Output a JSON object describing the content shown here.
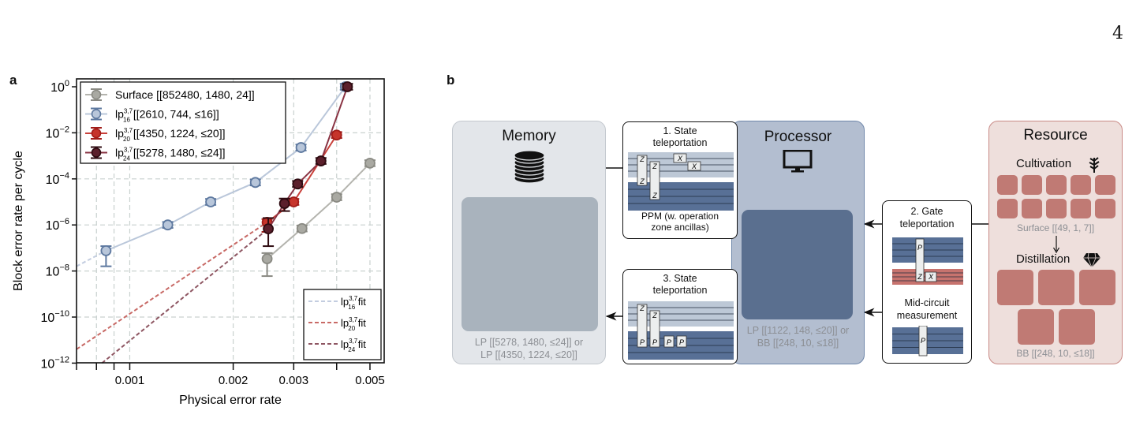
{
  "page_number": "4",
  "panel_a": {
    "label": "a",
    "chart_data": {
      "type": "line",
      "xlabel": "Physical error rate",
      "ylabel": "Block error rate per cycle",
      "x_scale": "log",
      "y_scale": "log",
      "xlim": [
        0.0007,
        0.0055
      ],
      "ylim": [
        1e-12,
        1
      ],
      "x_ticks": [
        {
          "value": 0.001,
          "label": "0.001"
        },
        {
          "value": 0.002,
          "label": "0.002"
        },
        {
          "value": 0.003,
          "label": "0.003"
        },
        {
          "value": 0.005,
          "label": "0.005"
        }
      ],
      "x_minor_ticks": [
        0.0007,
        0.0008,
        0.0009,
        0.004
      ],
      "y_ticks": [
        {
          "value": 1,
          "base": "10",
          "exp": "0"
        },
        {
          "value": 0.01,
          "base": "10",
          "exp": "−2"
        },
        {
          "value": 0.0001,
          "base": "10",
          "exp": "−4"
        },
        {
          "value": 1e-06,
          "base": "10",
          "exp": "−6"
        },
        {
          "value": 1e-08,
          "base": "10",
          "exp": "−8"
        },
        {
          "value": 1e-10,
          "base": "10",
          "exp": "−10"
        },
        {
          "value": 1e-12,
          "base": "10",
          "exp": "−12"
        }
      ],
      "grid": true,
      "legend_placement": "top-left",
      "fit_legend_placement": "bottom-right",
      "series": [
        {
          "name": "Surface",
          "sup": "",
          "sub": "",
          "params": "[[852480, 1480, 24]]",
          "line": "#b4b4ae",
          "fill": "#a9a9a2",
          "stroke": "#8a8a83",
          "x": [
            0.00251,
            0.00317,
            0.004,
            0.005
          ],
          "y": [
            3.4e-08,
            7e-07,
            1.6e-05,
            0.00048
          ],
          "err": [
            [
              6e-09,
              6e-08
            ],
            null,
            null,
            null
          ]
        },
        {
          "name": "lp",
          "sup": "3,7",
          "sub": "16",
          "params": "[[2610, 744, ≤16]]",
          "line": "#bac7da",
          "fill": "#b8c6da",
          "stroke": "#5d789f",
          "x": [
            0.000853,
            0.00129,
            0.00172,
            0.00232,
            0.00315,
            0.00424
          ],
          "y": [
            7.6e-08,
            1e-06,
            1e-05,
            7e-05,
            0.0023,
            1
          ],
          "err": [
            [
              1.6e-08,
              1.2e-07
            ],
            null,
            null,
            null,
            null,
            null
          ]
        },
        {
          "name": "lp",
          "sup": "3,7",
          "sub": "20",
          "params": "[[4350, 1224, ≤20]]",
          "line": "#c9403a",
          "fill": "#c6342b",
          "stroke": "#a11c18",
          "x": [
            0.00251,
            0.003,
            0.004
          ],
          "y": [
            1.3e-06,
            1e-05,
            0.008
          ],
          "err": [
            [
              5e-07,
              1.8e-06
            ],
            null,
            null
          ]
        },
        {
          "name": "lp",
          "sup": "3,7",
          "sub": "24",
          "params": "[[5278, 1480, ≤24]]",
          "line": "#8a3444",
          "fill": "#5b1f2b",
          "stroke": "#2e0a10",
          "x": [
            0.00253,
            0.00282,
            0.00308,
            0.0036,
            0.0043
          ],
          "y": [
            6.8e-07,
            8.5e-06,
            6e-05,
            0.0006,
            1
          ],
          "err": [
            [
              1.2e-07,
              2e-06
            ],
            [
              4e-06,
              1.4e-05
            ],
            null,
            null,
            null
          ]
        }
      ],
      "fits": [
        {
          "name": "lp",
          "sup": "3,7",
          "sub": "16",
          "suffix": "fit",
          "color": "#c3cde0",
          "x": [
            0.0007,
            0.000853
          ],
          "y": [
            1.6e-08,
            7.6e-08
          ]
        },
        {
          "name": "lp",
          "sup": "3,7",
          "sub": "20",
          "suffix": "fit",
          "color": "#c86a66",
          "x": [
            0.0007,
            0.00251
          ],
          "y": [
            4e-12,
            1.3e-06
          ]
        },
        {
          "name": "lp",
          "sup": "3,7",
          "sub": "24",
          "suffix": "fit",
          "color": "#8e5662",
          "x": [
            0.00083,
            0.00253
          ],
          "y": [
            1e-12,
            6.8e-07
          ]
        }
      ]
    }
  },
  "panel_b": {
    "label": "b",
    "memory": {
      "title": "Memory",
      "icon": "database-icon",
      "code_line1": "LP [[5278, 1480, ≤24]] or",
      "code_line2": "LP [[4350, 1224, ≤20]]"
    },
    "processor": {
      "title": "Processor",
      "icon": "monitor-icon",
      "code_line1": "LP [[1122, 148, ≤20]] or",
      "code_line2": "BB [[248, 10, ≤18]]"
    },
    "resource": {
      "title": "Resource",
      "cultivation": "Cultivation",
      "cultivation_icon": "sprout-icon",
      "surface_code": "Surface [[49, 1, 7]]",
      "distillation": "Distillation",
      "distillation_icon": "diamond-icon",
      "bb_code": "BB [[248, 10, ≤18]]"
    },
    "step1": {
      "title_line1": "1. State",
      "title_line2": "teleportation",
      "note_line1": "PPM (w. operation",
      "note_line2": "zone ancillas)",
      "gates": [
        "Z",
        "Z",
        "Z",
        "Z",
        "X",
        "X"
      ]
    },
    "step2": {
      "title_line1": "2. Gate",
      "title_line2": "teleportation",
      "gates": [
        "P",
        "Z",
        "X"
      ],
      "mid_line1": "Mid-circuit",
      "mid_line2": "measurement",
      "mid_gates": [
        "P"
      ]
    },
    "step3": {
      "title_line1": "3. State",
      "title_line2": "teleportation",
      "gates": [
        "Z",
        "P",
        "Z",
        "P",
        "P",
        "P"
      ]
    },
    "colors": {
      "memory_bg": "#e3e6ea",
      "memory_inner": "#a9b3bd",
      "processor_bg": "#b3bed0",
      "processor_inner": "#5a6f8f",
      "resource_bg": "#eedfdc",
      "resource_tile": "#c07a74",
      "circuit_light": "#b9c5d4",
      "circuit_dark": "#4f6890",
      "circuit_red": "#c46b66"
    }
  }
}
